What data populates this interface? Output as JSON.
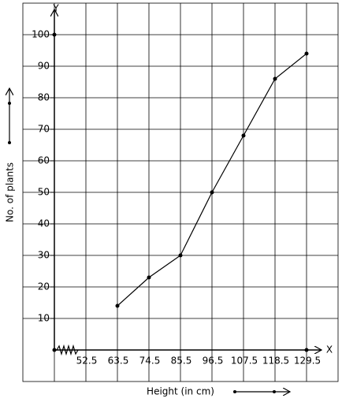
{
  "chart_data": {
    "type": "line",
    "x_label": "Height (in cm)",
    "y_label": "No. of plants",
    "x_axis_name": "X",
    "y_axis_name": "Y",
    "x": [
      63.5,
      74.5,
      85.5,
      96.5,
      107.5,
      118.5,
      129.5
    ],
    "series": [
      {
        "color": "#000000",
        "values": [
          14,
          23,
          30,
          50,
          68,
          86,
          94
        ]
      }
    ],
    "xlim": [
      30.5,
      140.5
    ],
    "xticks": [
      52.5,
      63.5,
      74.5,
      85.5,
      96.5,
      107.5,
      118.5,
      129.5
    ],
    "ylim": [
      -10,
      110
    ],
    "yticks": [
      10,
      20,
      30,
      40,
      50,
      60,
      70,
      80,
      90,
      100
    ],
    "grid": true
  }
}
